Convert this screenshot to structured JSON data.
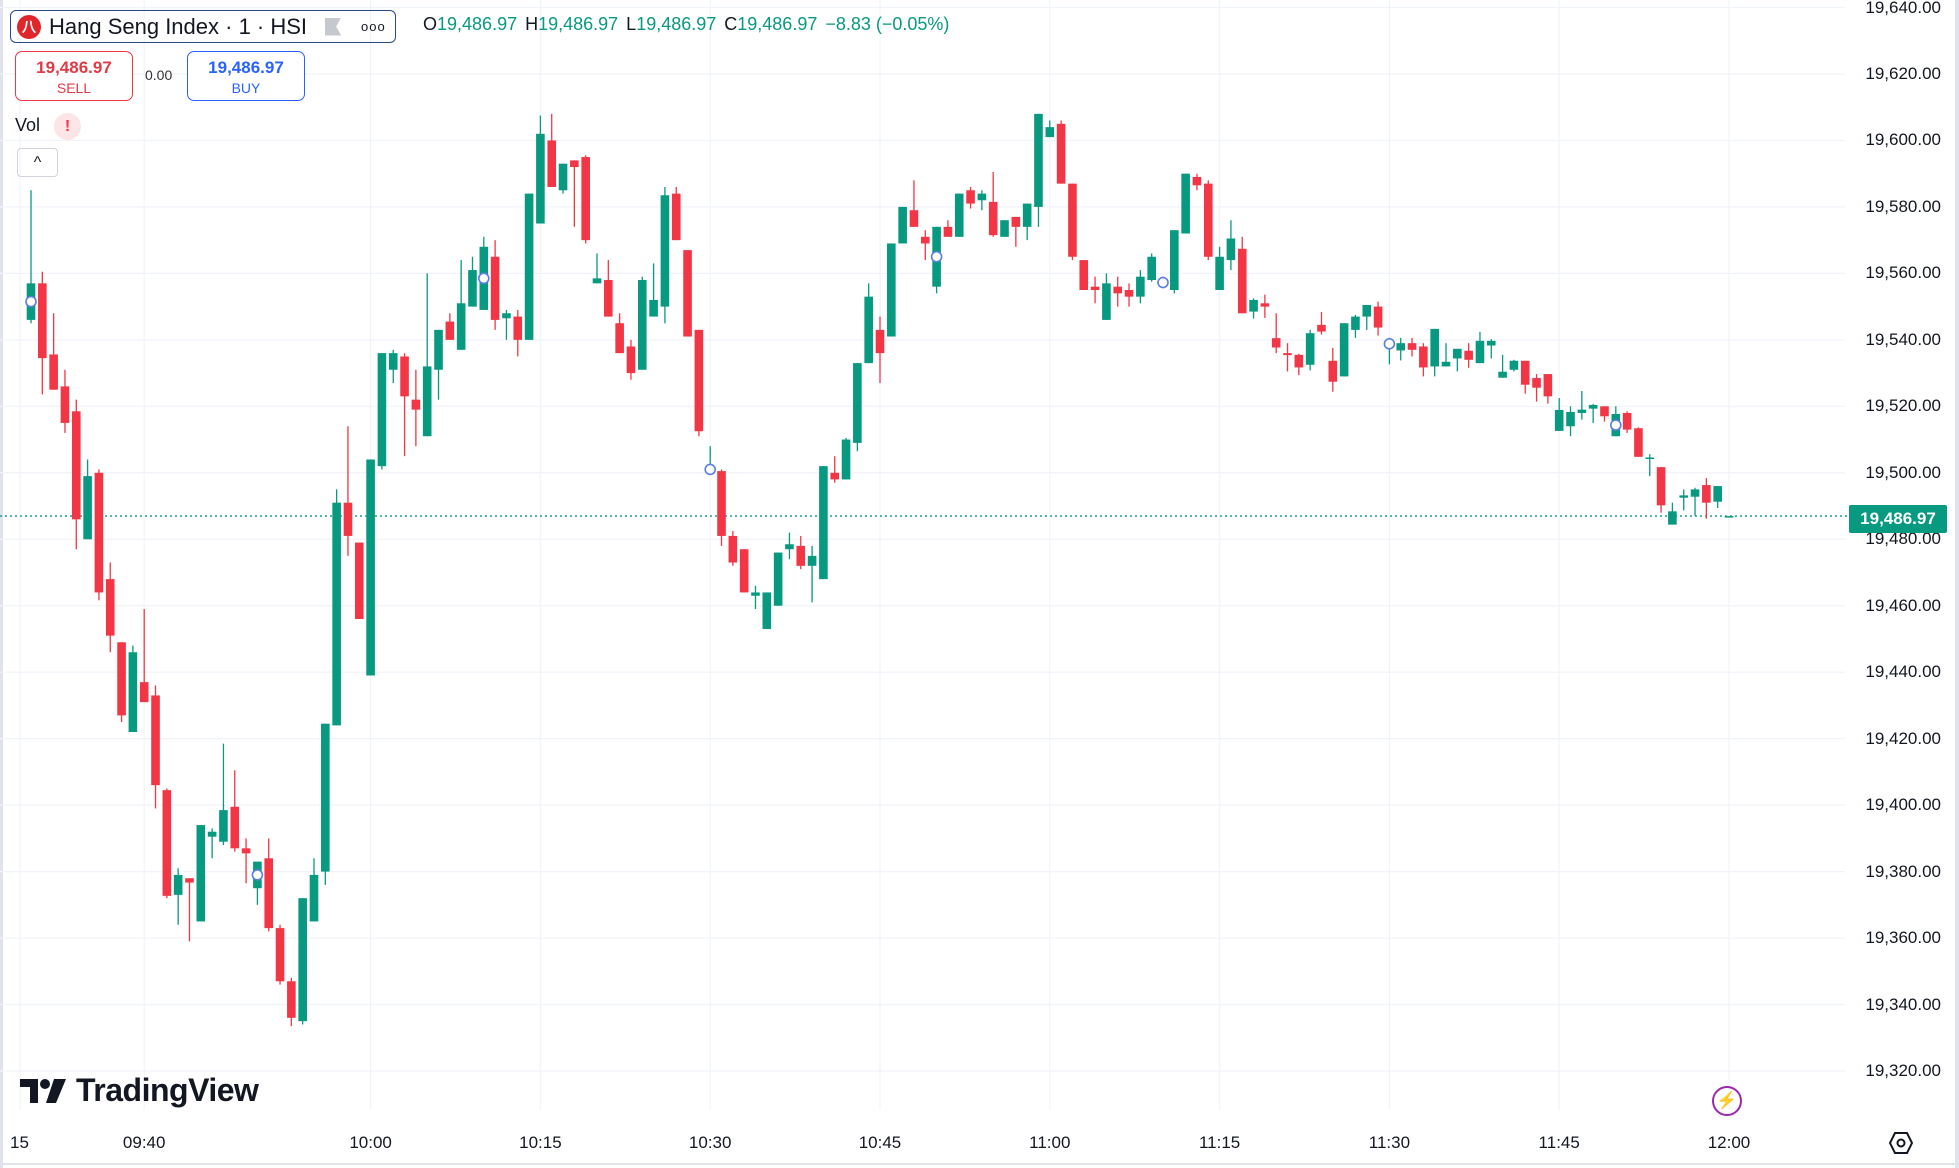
{
  "header": {
    "symbol_icon": "hsi-logo",
    "symbol_title": "Hang Seng Index · 1 · HSI",
    "more_label": "ooo",
    "legend": {
      "o_label": "O",
      "o": "19,486.97",
      "h_label": "H",
      "h": "19,486.97",
      "l_label": "L",
      "l": "19,486.97",
      "c_label": "C",
      "c": "19,486.97",
      "change": "−8.83 (−0.05%)"
    }
  },
  "trade": {
    "sell_price": "19,486.97",
    "sell_label": "SELL",
    "spread": "0.00",
    "buy_price": "19,486.97",
    "buy_label": "BUY"
  },
  "indicator": {
    "vol_label": "Vol",
    "warning": "!",
    "collapse": "^"
  },
  "logo": "TradingView",
  "price_axis": {
    "labels": [
      "19,640.00",
      "19,620.00",
      "19,600.00",
      "19,580.00",
      "19,560.00",
      "19,540.00",
      "19,520.00",
      "19,500.00",
      "19,480.00",
      "19,460.00",
      "19,440.00",
      "19,420.00",
      "19,400.00",
      "19,380.00",
      "19,360.00",
      "19,340.00",
      "19,320.00"
    ],
    "current_price": "19,486.97"
  },
  "time_axis": {
    "labels": [
      "15",
      "09:40",
      "10:00",
      "10:15",
      "10:30",
      "10:45",
      "11:00",
      "11:15",
      "11:30",
      "11:45",
      "12:00"
    ]
  },
  "colors": {
    "up": "#089981",
    "down": "#F23645",
    "grid": "#f0f3fa",
    "marker": "#5b7fe0",
    "accent_purple": "#9c27b0"
  },
  "chart_data": {
    "type": "candlestick",
    "interval": "1",
    "ylim": [
      19320,
      19640
    ],
    "grid": true,
    "last_price": 19486.97,
    "markers": [
      "09:30",
      "09:50",
      "10:10",
      "10:30",
      "10:50",
      "11:10",
      "11:30",
      "11:50"
    ],
    "candles": [
      [
        "09:30",
        19546,
        19585,
        19545,
        19557
      ],
      [
        "09:31",
        19557,
        19560.5,
        19523.6,
        19534.5
      ],
      [
        "09:32",
        19535.6,
        19548,
        19525,
        19525
      ],
      [
        "09:33",
        19526,
        19531,
        19512,
        19515
      ],
      [
        "09:34",
        19518.5,
        19522,
        19477,
        19486
      ],
      [
        "09:35",
        19480,
        19504,
        19480,
        19499
      ],
      [
        "09:36",
        19500,
        19501,
        19461.6,
        19464
      ],
      [
        "09:37",
        19468,
        19473,
        19446,
        19451
      ],
      [
        "09:38",
        19449,
        19449,
        19425,
        19427
      ],
      [
        "09:39",
        19422,
        19448,
        19422,
        19446
      ],
      [
        "09:40",
        19437,
        19459,
        19431,
        19431
      ],
      [
        "09:41",
        19433,
        19436,
        19399,
        19406
      ],
      [
        "09:42",
        19404.5,
        19405,
        19372,
        19372.7
      ],
      [
        "09:43",
        19373,
        19381,
        19364,
        19379
      ],
      [
        "09:44",
        19378,
        19378,
        19359,
        19376.7
      ],
      [
        "09:45",
        19365,
        19394,
        19365,
        19394
      ],
      [
        "09:46",
        19390.5,
        19393,
        19384,
        19392
      ],
      [
        "09:47",
        19389,
        19418.5,
        19388,
        19398.5
      ],
      [
        "09:48",
        19399.5,
        19410.5,
        19386,
        19387
      ],
      [
        "09:49",
        19387,
        19390,
        19376.5,
        19385.5
      ],
      [
        "09:50",
        19375,
        19383,
        19370,
        19383
      ],
      [
        "09:51",
        19384,
        19390,
        19362,
        19363
      ],
      [
        "09:52",
        19363,
        19364,
        19346,
        19347
      ],
      [
        "09:53",
        19347,
        19348,
        19333.5,
        19336
      ],
      [
        "09:54",
        19335,
        19372,
        19334,
        19372
      ],
      [
        "09:55",
        19365,
        19384,
        19365,
        19379
      ],
      [
        "09:56",
        19380,
        19424.5,
        19376,
        19424.5
      ],
      [
        "09:57",
        19424,
        19495,
        19424,
        19491
      ],
      [
        "09:58",
        19491,
        19514,
        19475,
        19481
      ],
      [
        "09:59",
        19479,
        19479,
        19456,
        19456
      ],
      [
        "10:00",
        19439,
        19504,
        19439,
        19504
      ],
      [
        "10:01",
        19502,
        19536,
        19501,
        19536
      ],
      [
        "10:02",
        19531,
        19537,
        19527,
        19536
      ],
      [
        "10:03",
        19535,
        19536,
        19505,
        19523
      ],
      [
        "10:04",
        19522,
        19531,
        19508,
        19519
      ],
      [
        "10:05",
        19511,
        19560,
        19511,
        19532
      ],
      [
        "10:06",
        19531,
        19543,
        19522,
        19543
      ],
      [
        "10:07",
        19545.5,
        19548,
        19540,
        19540
      ],
      [
        "10:08",
        19537,
        19564,
        19537,
        19551
      ],
      [
        "10:09",
        19550,
        19565,
        19550,
        19561
      ],
      [
        "10:10",
        19549,
        19571,
        19549,
        19568
      ],
      [
        "10:11",
        19565,
        19570,
        19543,
        19546
      ],
      [
        "10:12",
        19546.5,
        19549,
        19540,
        19548
      ],
      [
        "10:13",
        19547,
        19549,
        19535,
        19540
      ],
      [
        "10:14",
        19540,
        19584,
        19540,
        19584
      ],
      [
        "10:15",
        19575,
        19607.5,
        19575,
        19602
      ],
      [
        "10:16",
        19600,
        19608,
        19586,
        19586
      ],
      [
        "10:17",
        19585,
        19593,
        19584,
        19593
      ],
      [
        "10:18",
        19594,
        19594,
        19574,
        19592
      ],
      [
        "10:19",
        19595,
        19595.5,
        19569,
        19570
      ],
      [
        "10:20",
        19557,
        19566,
        19557,
        19558.5
      ],
      [
        "10:21",
        19558,
        19564,
        19547,
        19547
      ],
      [
        "10:22",
        19545,
        19548,
        19536,
        19536
      ],
      [
        "10:23",
        19538,
        19540,
        19528,
        19530
      ],
      [
        "10:24",
        19531,
        19559,
        19531,
        19558
      ],
      [
        "10:25",
        19547,
        19563,
        19547,
        19552
      ],
      [
        "10:26",
        19550,
        19586,
        19545,
        19583.5
      ],
      [
        "10:27",
        19584,
        19586,
        19570,
        19570
      ],
      [
        "10:28",
        19567,
        19567,
        19541,
        19541
      ],
      [
        "10:29",
        19543,
        19543,
        19511,
        19512.5
      ],
      [
        "10:30",
        19501,
        19508,
        19500,
        19501
      ],
      [
        "10:31",
        19500.5,
        19501,
        19478,
        19481
      ],
      [
        "10:32",
        19481,
        19482.5,
        19472,
        19473
      ],
      [
        "10:33",
        19477,
        19477,
        19464,
        19464
      ],
      [
        "10:34",
        19463,
        19466,
        19459,
        19464
      ],
      [
        "10:35",
        19453,
        19464,
        19453,
        19464
      ],
      [
        "10:36",
        19460,
        19476,
        19460,
        19476
      ],
      [
        "10:37",
        19477,
        19482,
        19474,
        19478.5
      ],
      [
        "10:38",
        19478,
        19481,
        19471,
        19472
      ],
      [
        "10:39",
        19472,
        19478,
        19461,
        19475
      ],
      [
        "10:40",
        19468,
        19502,
        19468,
        19502
      ],
      [
        "10:41",
        19500,
        19505,
        19497,
        19498
      ],
      [
        "10:42",
        19498,
        19510.5,
        19498,
        19510
      ],
      [
        "10:43",
        19509,
        19533,
        19506.5,
        19533
      ],
      [
        "10:44",
        19533,
        19557,
        19533,
        19553
      ],
      [
        "10:45",
        19543,
        19547,
        19527,
        19536
      ],
      [
        "10:46",
        19541,
        19569,
        19541,
        19569
      ],
      [
        "10:47",
        19569,
        19580,
        19569,
        19580
      ],
      [
        "10:48",
        19579,
        19588,
        19574,
        19574
      ],
      [
        "10:49",
        19571,
        19573,
        19564,
        19569
      ],
      [
        "10:50",
        19556,
        19574,
        19554,
        19574
      ],
      [
        "10:51",
        19574,
        19576,
        19571,
        19571
      ],
      [
        "10:52",
        19571,
        19584,
        19571,
        19584
      ],
      [
        "10:53",
        19585,
        19586,
        19579.5,
        19581
      ],
      [
        "10:54",
        19582,
        19585,
        19579,
        19584
      ],
      [
        "10:55",
        19581.5,
        19590.5,
        19571,
        19571.5
      ],
      [
        "10:56",
        19571,
        19576,
        19571,
        19576
      ],
      [
        "10:57",
        19577,
        19577,
        19568,
        19574
      ],
      [
        "10:58",
        19574,
        19581,
        19570,
        19581
      ],
      [
        "10:59",
        19580,
        19608,
        19574,
        19608
      ],
      [
        "11:00",
        19601,
        19606,
        19601,
        19604
      ],
      [
        "11:01",
        19605,
        19606,
        19587,
        19587
      ],
      [
        "11:02",
        19587,
        19587,
        19564,
        19565
      ],
      [
        "11:03",
        19564,
        19564,
        19555,
        19555
      ],
      [
        "11:04",
        19556,
        19559,
        19551,
        19555
      ],
      [
        "11:05",
        19546,
        19560,
        19546,
        19557
      ],
      [
        "11:06",
        19556,
        19559,
        19550,
        19554
      ],
      [
        "11:07",
        19555,
        19557,
        19550,
        19553
      ],
      [
        "11:08",
        19553,
        19561,
        19551,
        19559
      ],
      [
        "11:09",
        19558,
        19566,
        19557.5,
        19565
      ],
      [
        "11:10",
        19557,
        19559,
        19556,
        19557.5
      ],
      [
        "11:11",
        19555,
        19573,
        19554,
        19573
      ],
      [
        "11:12",
        19572,
        19590,
        19572,
        19590
      ],
      [
        "11:13",
        19589,
        19590,
        19585,
        19586.5
      ],
      [
        "11:14",
        19587,
        19588,
        19564,
        19565
      ],
      [
        "11:15",
        19555,
        19568,
        19555,
        19565
      ],
      [
        "11:16",
        19564,
        19576,
        19561,
        19570.5
      ],
      [
        "11:17",
        19567.4,
        19571,
        19548,
        19548
      ],
      [
        "11:18",
        19548.5,
        19552.5,
        19546.4,
        19552
      ],
      [
        "11:19",
        19551,
        19553.6,
        19546.6,
        19550
      ],
      [
        "11:20",
        19540.5,
        19548,
        19536,
        19537.7
      ],
      [
        "11:21",
        19536,
        19539,
        19530.5,
        19535.4
      ],
      [
        "11:22",
        19535.5,
        19535.8,
        19529.4,
        19531.7
      ],
      [
        "11:23",
        19532.5,
        19543,
        19530.8,
        19542
      ],
      [
        "11:24",
        19544.5,
        19548.4,
        19541.6,
        19542.5
      ],
      [
        "11:25",
        19533.7,
        19537.6,
        19524.4,
        19527.4
      ],
      [
        "11:26",
        19529,
        19545,
        19529,
        19545
      ],
      [
        "11:27",
        19543,
        19547.5,
        19540.6,
        19547
      ],
      [
        "11:28",
        19547,
        19550.5,
        19543,
        19550.5
      ],
      [
        "11:29",
        19550,
        19551.5,
        19541.3,
        19543.7
      ],
      [
        "11:30",
        19538.6,
        19540.6,
        19532.6,
        19539
      ],
      [
        "11:31",
        19536.8,
        19540.6,
        19533.8,
        19539
      ],
      [
        "11:32",
        19539,
        19540.6,
        19535,
        19537
      ],
      [
        "11:33",
        19538,
        19539,
        19529,
        19531.7
      ],
      [
        "11:34",
        19532,
        19543.3,
        19529,
        19543.3
      ],
      [
        "11:35",
        19532,
        19539,
        19532,
        19533.4
      ],
      [
        "11:36",
        19534.4,
        19537.3,
        19530.5,
        19537.3
      ],
      [
        "11:37",
        19536.7,
        19539,
        19531.6,
        19534
      ],
      [
        "11:38",
        19533,
        19542.4,
        19533,
        19539.7
      ],
      [
        "11:39",
        19538.3,
        19540.2,
        19534.4,
        19539.7
      ],
      [
        "11:40",
        19528.6,
        19535.5,
        19528.6,
        19530.4
      ],
      [
        "11:41",
        19531,
        19534,
        19530.5,
        19533.7
      ],
      [
        "11:42",
        19533.7,
        19533.7,
        19523.8,
        19526.5
      ],
      [
        "11:43",
        19528.5,
        19529.7,
        19521.4,
        19525.6
      ],
      [
        "11:44",
        19529.7,
        19529.7,
        19520.8,
        19523
      ],
      [
        "11:45",
        19512.6,
        19522.5,
        19512.6,
        19518.9
      ],
      [
        "11:46",
        19514,
        19520,
        19511,
        19518.3
      ],
      [
        "11:47",
        19518,
        19524.6,
        19516,
        19519
      ],
      [
        "11:48",
        19519.3,
        19520.7,
        19515,
        19520.4
      ],
      [
        "11:49",
        19520,
        19520,
        19515.4,
        19517
      ],
      [
        "11:50",
        19511,
        19520,
        19511,
        19517.7
      ],
      [
        "11:51",
        19518,
        19518.5,
        19512,
        19513
      ],
      [
        "11:52",
        19513.4,
        19513.7,
        19504.8,
        19504.8
      ],
      [
        "11:53",
        19504.3,
        19505.6,
        19499,
        19504.6
      ],
      [
        "11:54",
        19501.7,
        19501.7,
        19488,
        19490.2
      ],
      [
        "11:55",
        19484.4,
        19491,
        19484.4,
        19488.4
      ],
      [
        "11:56",
        19492.5,
        19495,
        19488.7,
        19493.2
      ],
      [
        "11:57",
        19492.8,
        19495.5,
        19487,
        19495
      ],
      [
        "11:58",
        19496.3,
        19498.4,
        19486.2,
        19491
      ],
      [
        "11:59",
        19491.3,
        19496,
        19489.4,
        19496
      ],
      [
        "12:00",
        19486.97,
        19486.97,
        19486.97,
        19486.97
      ]
    ]
  }
}
